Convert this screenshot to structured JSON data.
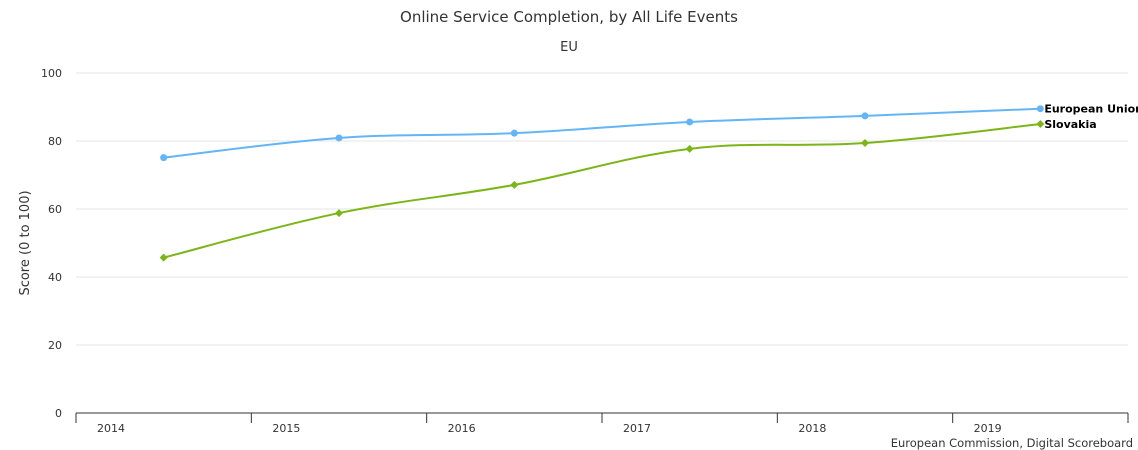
{
  "chart_data": {
    "type": "line",
    "title": "Online Service Completion, by All Life Events",
    "subtitle": "EU",
    "xlabel": "",
    "ylabel": "Score (0 to 100)",
    "categories": [
      "2014",
      "2015",
      "2016",
      "2017",
      "2018",
      "2019"
    ],
    "ylim": [
      0,
      100
    ],
    "yticks": [
      "0",
      "20",
      "40",
      "60",
      "80",
      "100"
    ],
    "grid": true,
    "series": [
      {
        "name": "European Union",
        "color": "#64b5f6",
        "marker": "circle",
        "values": [
          75.1,
          80.9,
          82.3,
          85.6,
          87.4,
          89.5
        ]
      },
      {
        "name": "Slovakia",
        "color": "#7cb518",
        "marker": "diamond",
        "values": [
          45.7,
          58.8,
          67.1,
          77.7,
          79.4,
          85.0
        ]
      }
    ],
    "credit": "European Commission, Digital Scoreboard"
  }
}
